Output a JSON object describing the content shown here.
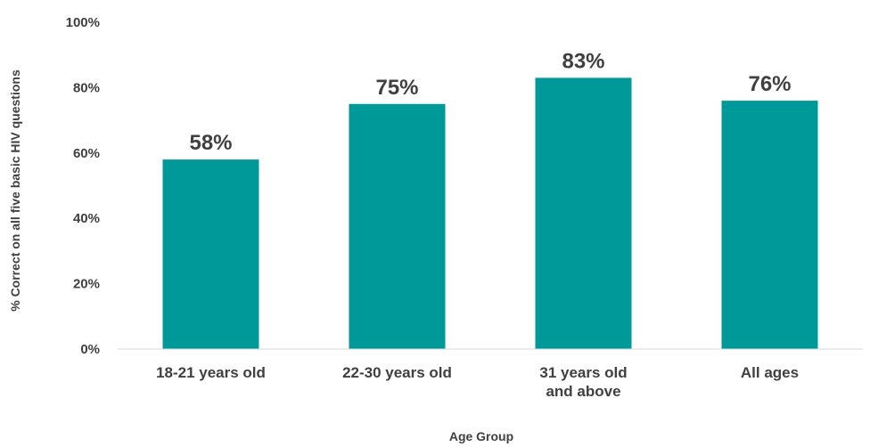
{
  "chart_data": {
    "type": "bar",
    "categories": [
      "18-21 years old",
      "22-30 years old",
      "31 years old and above",
      "All ages"
    ],
    "values": [
      58,
      75,
      83,
      76
    ],
    "data_labels": [
      "58%",
      "75%",
      "83%",
      "76%"
    ],
    "xlabel": "Age Group",
    "ylabel": "% Correct on all five basic HIV questions",
    "ylim": [
      0,
      100
    ],
    "yticks": [
      0,
      20,
      40,
      60,
      80,
      100
    ],
    "ytick_labels": [
      "0%",
      "20%",
      "40%",
      "60%",
      "80%",
      "100%"
    ],
    "grid": false,
    "legend": "none",
    "bar_color": "#009999",
    "text_color": "#404040"
  }
}
